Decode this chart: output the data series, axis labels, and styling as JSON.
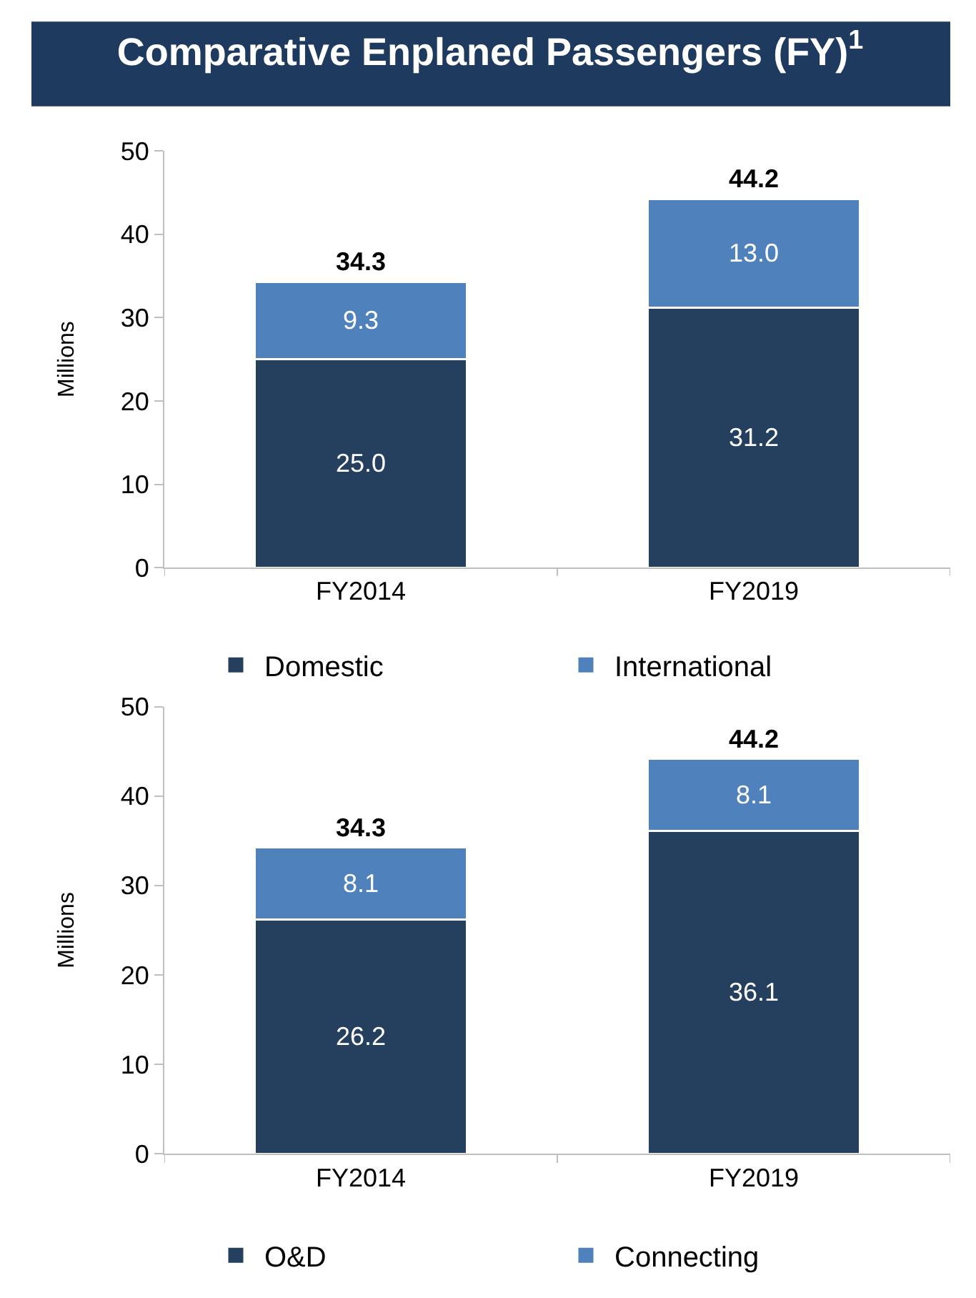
{
  "chart_data": [
    {
      "type": "bar",
      "title": "Comparative Enplaned Passengers (FY)$^{1}$",
      "ylabel": "Millions",
      "stacked": true,
      "categories": [
        "FY2014",
        "FY2019"
      ],
      "series": [
        {
          "name": "Domestic",
          "color": "#253f5f",
          "values": [
            25.0,
            31.2
          ],
          "value_labels": [
            "25.0",
            "31.2"
          ]
        },
        {
          "name": "International",
          "color": "#4f81bd",
          "values": [
            9.3,
            13.0
          ],
          "value_labels": [
            "9.3",
            "13.0"
          ]
        }
      ],
      "ylim": [
        0,
        50
      ],
      "yticks": [
        0,
        10,
        20,
        30,
        40,
        50
      ],
      "totals": [
        "34.3",
        "44.2"
      ],
      "legend": "bottom"
    },
    {
      "type": "bar",
      "ylabel": "Millions",
      "stacked": true,
      "categories": [
        "FY2014",
        "FY2019"
      ],
      "series": [
        {
          "name": "O&D",
          "color": "#253f5f",
          "values": [
            26.2,
            36.1
          ],
          "value_labels": [
            "26.2",
            "36.1"
          ]
        },
        {
          "name": "Connecting",
          "color": "#4f81bd",
          "values": [
            8.1,
            8.1
          ],
          "value_labels": [
            "8.1",
            "8.1"
          ]
        }
      ],
      "ylim": [
        0,
        50
      ],
      "yticks": [
        0,
        10,
        20,
        30,
        40,
        50
      ],
      "totals": [
        "34.3",
        "44.2"
      ],
      "legend": "bottom"
    }
  ]
}
